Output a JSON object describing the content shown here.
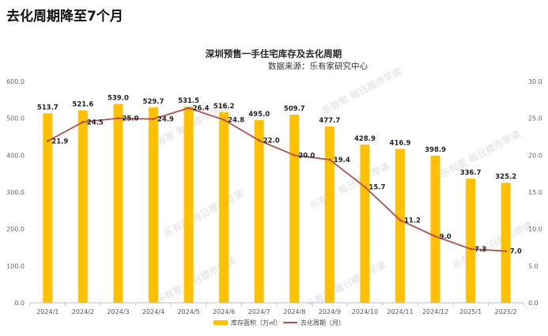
{
  "headline": "去化周期降至7个月",
  "chart_data": {
    "type": "bar",
    "title": "深圳预售一手住宅库存及去化周期",
    "subtitle": "数据来源：乐有家研究中心",
    "categories": [
      "2024/1",
      "2024/2",
      "2024/3",
      "2024/4",
      "2024/5",
      "2024/6",
      "2024/7",
      "2024/8",
      "2024/9",
      "2024/10",
      "2024/11",
      "2024/12",
      "2025/1",
      "2025/2"
    ],
    "y_left": {
      "range": [
        0,
        600
      ],
      "ticks": [
        "0.0",
        "100.0",
        "200.0",
        "300.0",
        "400.0",
        "500.0",
        "600.0"
      ]
    },
    "y_right": {
      "range": [
        0,
        30
      ],
      "ticks": [
        "0.0",
        "5.0",
        "10.0",
        "15.0",
        "20.0",
        "25.0",
        "30.0"
      ]
    },
    "grid": false,
    "legend_position": "bottom",
    "series": [
      {
        "name": "库存面积（万㎡）",
        "type": "bar",
        "axis": "left",
        "color": "#FFC000",
        "values": [
          513.7,
          521.6,
          539.0,
          529.7,
          531.5,
          516.2,
          495.0,
          509.7,
          477.7,
          428.9,
          416.9,
          398.9,
          336.7,
          325.2
        ],
        "labels": [
          "513.7",
          "521.6",
          "539.0",
          "529.7",
          "531.5",
          "516.2",
          "495.0",
          "509.7",
          "477.7",
          "428.9",
          "416.9",
          "398.9",
          "336.7",
          "325.2"
        ]
      },
      {
        "name": "去化周期（月）",
        "type": "line",
        "axis": "right",
        "color": "#B0524E",
        "values": [
          21.9,
          24.5,
          25.0,
          24.9,
          26.4,
          24.8,
          22.0,
          20.0,
          19.4,
          15.7,
          11.2,
          9.0,
          7.3,
          7.0
        ],
        "labels": [
          "21.9",
          "24.5",
          "25.0",
          "24.9",
          "26.4",
          "24.8",
          "22.0",
          "20.0",
          "19.4",
          "15.7",
          "11.2",
          "9.0",
          "7.3",
          "7.0"
        ]
      }
    ],
    "watermark": "乐有家 每日楼市早读"
  }
}
